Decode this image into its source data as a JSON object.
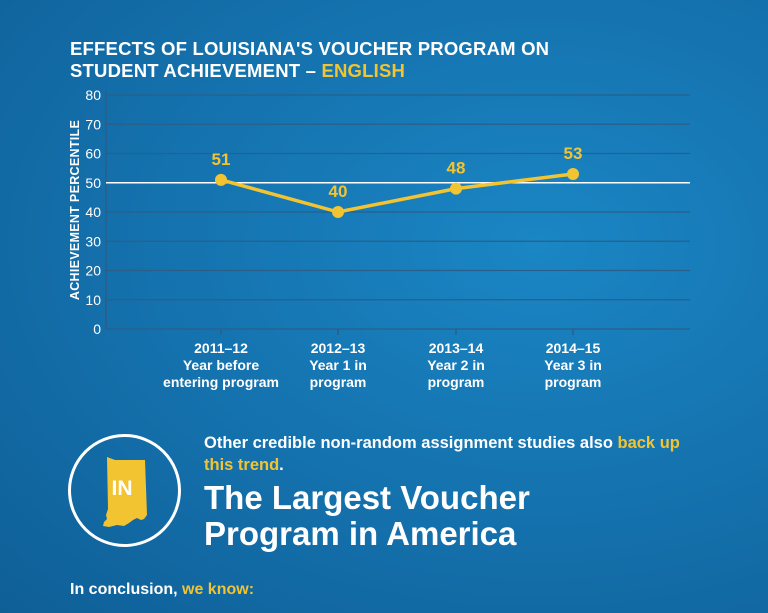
{
  "header": {
    "title_line1": "EFFECTS OF LOUISIANA'S VOUCHER PROGRAM ON",
    "title_line2_prefix": "STUDENT ACHIEVEMENT – ",
    "title_line2_accent": "ENGLISH"
  },
  "chart_data": {
    "type": "line",
    "ylabel": "ACHIEVEMENT PERCENTILE",
    "ylim": [
      0,
      80
    ],
    "yticks": [
      0,
      10,
      20,
      30,
      40,
      50,
      60,
      70,
      80
    ],
    "reference_line": 50,
    "grid": true,
    "categories": [
      {
        "year": "2011–12",
        "desc_line1": "Year before",
        "desc_line2": "entering program"
      },
      {
        "year": "2012–13",
        "desc_line1": "Year 1 in",
        "desc_line2": "program"
      },
      {
        "year": "2013–14",
        "desc_line1": "Year 2 in",
        "desc_line2": "program"
      },
      {
        "year": "2014–15",
        "desc_line1": "Year 3 in",
        "desc_line2": "program"
      }
    ],
    "values": [
      51,
      40,
      48,
      53
    ],
    "colors": {
      "line": "#f2c431",
      "gridline": "#2a5f8a",
      "reference": "#ffffff"
    }
  },
  "note": {
    "prefix": "Other credible non-random assignment studies also ",
    "accent": "back up this trend",
    "suffix": "."
  },
  "badge": {
    "state_abbr": "IN",
    "icon": "indiana-state-icon"
  },
  "headline": {
    "line1": "The Largest Voucher",
    "line2": "Program in America"
  },
  "conclusion": {
    "prefix": "In conclusion, ",
    "accent": "we know:"
  }
}
